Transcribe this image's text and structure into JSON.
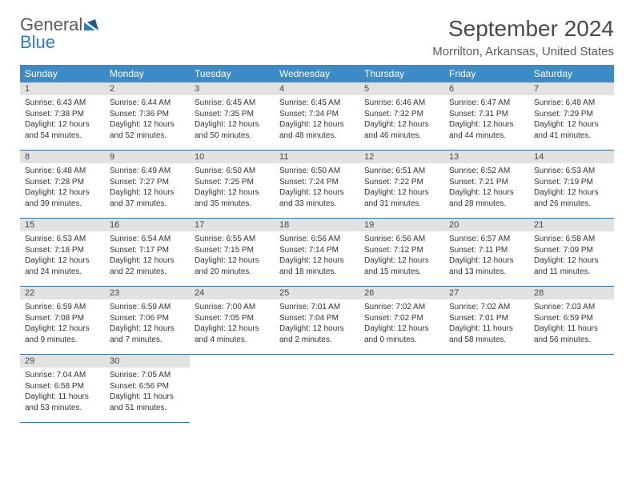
{
  "logo": {
    "line1": "General",
    "line2": "Blue"
  },
  "title": "September 2024",
  "subtitle": "Morrilton, Arkansas, United States",
  "colors": {
    "header_bg": "#3b8bc9",
    "header_text": "#ffffff",
    "daynum_bg": "#e2e2e2",
    "row_divider": "#2e6da6",
    "text": "#333333"
  },
  "day_headers": [
    "Sunday",
    "Monday",
    "Tuesday",
    "Wednesday",
    "Thursday",
    "Friday",
    "Saturday"
  ],
  "weeks": [
    [
      {
        "n": "1",
        "sr": "Sunrise: 6:43 AM",
        "ss": "Sunset: 7:38 PM",
        "d1": "Daylight: 12 hours",
        "d2": "and 54 minutes."
      },
      {
        "n": "2",
        "sr": "Sunrise: 6:44 AM",
        "ss": "Sunset: 7:36 PM",
        "d1": "Daylight: 12 hours",
        "d2": "and 52 minutes."
      },
      {
        "n": "3",
        "sr": "Sunrise: 6:45 AM",
        "ss": "Sunset: 7:35 PM",
        "d1": "Daylight: 12 hours",
        "d2": "and 50 minutes."
      },
      {
        "n": "4",
        "sr": "Sunrise: 6:45 AM",
        "ss": "Sunset: 7:34 PM",
        "d1": "Daylight: 12 hours",
        "d2": "and 48 minutes."
      },
      {
        "n": "5",
        "sr": "Sunrise: 6:46 AM",
        "ss": "Sunset: 7:32 PM",
        "d1": "Daylight: 12 hours",
        "d2": "and 46 minutes."
      },
      {
        "n": "6",
        "sr": "Sunrise: 6:47 AM",
        "ss": "Sunset: 7:31 PM",
        "d1": "Daylight: 12 hours",
        "d2": "and 44 minutes."
      },
      {
        "n": "7",
        "sr": "Sunrise: 6:48 AM",
        "ss": "Sunset: 7:29 PM",
        "d1": "Daylight: 12 hours",
        "d2": "and 41 minutes."
      }
    ],
    [
      {
        "n": "8",
        "sr": "Sunrise: 6:48 AM",
        "ss": "Sunset: 7:28 PM",
        "d1": "Daylight: 12 hours",
        "d2": "and 39 minutes."
      },
      {
        "n": "9",
        "sr": "Sunrise: 6:49 AM",
        "ss": "Sunset: 7:27 PM",
        "d1": "Daylight: 12 hours",
        "d2": "and 37 minutes."
      },
      {
        "n": "10",
        "sr": "Sunrise: 6:50 AM",
        "ss": "Sunset: 7:25 PM",
        "d1": "Daylight: 12 hours",
        "d2": "and 35 minutes."
      },
      {
        "n": "11",
        "sr": "Sunrise: 6:50 AM",
        "ss": "Sunset: 7:24 PM",
        "d1": "Daylight: 12 hours",
        "d2": "and 33 minutes."
      },
      {
        "n": "12",
        "sr": "Sunrise: 6:51 AM",
        "ss": "Sunset: 7:22 PM",
        "d1": "Daylight: 12 hours",
        "d2": "and 31 minutes."
      },
      {
        "n": "13",
        "sr": "Sunrise: 6:52 AM",
        "ss": "Sunset: 7:21 PM",
        "d1": "Daylight: 12 hours",
        "d2": "and 28 minutes."
      },
      {
        "n": "14",
        "sr": "Sunrise: 6:53 AM",
        "ss": "Sunset: 7:19 PM",
        "d1": "Daylight: 12 hours",
        "d2": "and 26 minutes."
      }
    ],
    [
      {
        "n": "15",
        "sr": "Sunrise: 6:53 AM",
        "ss": "Sunset: 7:18 PM",
        "d1": "Daylight: 12 hours",
        "d2": "and 24 minutes."
      },
      {
        "n": "16",
        "sr": "Sunrise: 6:54 AM",
        "ss": "Sunset: 7:17 PM",
        "d1": "Daylight: 12 hours",
        "d2": "and 22 minutes."
      },
      {
        "n": "17",
        "sr": "Sunrise: 6:55 AM",
        "ss": "Sunset: 7:15 PM",
        "d1": "Daylight: 12 hours",
        "d2": "and 20 minutes."
      },
      {
        "n": "18",
        "sr": "Sunrise: 6:56 AM",
        "ss": "Sunset: 7:14 PM",
        "d1": "Daylight: 12 hours",
        "d2": "and 18 minutes."
      },
      {
        "n": "19",
        "sr": "Sunrise: 6:56 AM",
        "ss": "Sunset: 7:12 PM",
        "d1": "Daylight: 12 hours",
        "d2": "and 15 minutes."
      },
      {
        "n": "20",
        "sr": "Sunrise: 6:57 AM",
        "ss": "Sunset: 7:11 PM",
        "d1": "Daylight: 12 hours",
        "d2": "and 13 minutes."
      },
      {
        "n": "21",
        "sr": "Sunrise: 6:58 AM",
        "ss": "Sunset: 7:09 PM",
        "d1": "Daylight: 12 hours",
        "d2": "and 11 minutes."
      }
    ],
    [
      {
        "n": "22",
        "sr": "Sunrise: 6:59 AM",
        "ss": "Sunset: 7:08 PM",
        "d1": "Daylight: 12 hours",
        "d2": "and 9 minutes."
      },
      {
        "n": "23",
        "sr": "Sunrise: 6:59 AM",
        "ss": "Sunset: 7:06 PM",
        "d1": "Daylight: 12 hours",
        "d2": "and 7 minutes."
      },
      {
        "n": "24",
        "sr": "Sunrise: 7:00 AM",
        "ss": "Sunset: 7:05 PM",
        "d1": "Daylight: 12 hours",
        "d2": "and 4 minutes."
      },
      {
        "n": "25",
        "sr": "Sunrise: 7:01 AM",
        "ss": "Sunset: 7:04 PM",
        "d1": "Daylight: 12 hours",
        "d2": "and 2 minutes."
      },
      {
        "n": "26",
        "sr": "Sunrise: 7:02 AM",
        "ss": "Sunset: 7:02 PM",
        "d1": "Daylight: 12 hours",
        "d2": "and 0 minutes."
      },
      {
        "n": "27",
        "sr": "Sunrise: 7:02 AM",
        "ss": "Sunset: 7:01 PM",
        "d1": "Daylight: 11 hours",
        "d2": "and 58 minutes."
      },
      {
        "n": "28",
        "sr": "Sunrise: 7:03 AM",
        "ss": "Sunset: 6:59 PM",
        "d1": "Daylight: 11 hours",
        "d2": "and 56 minutes."
      }
    ],
    [
      {
        "n": "29",
        "sr": "Sunrise: 7:04 AM",
        "ss": "Sunset: 6:58 PM",
        "d1": "Daylight: 11 hours",
        "d2": "and 53 minutes."
      },
      {
        "n": "30",
        "sr": "Sunrise: 7:05 AM",
        "ss": "Sunset: 6:56 PM",
        "d1": "Daylight: 11 hours",
        "d2": "and 51 minutes."
      },
      null,
      null,
      null,
      null,
      null
    ]
  ]
}
